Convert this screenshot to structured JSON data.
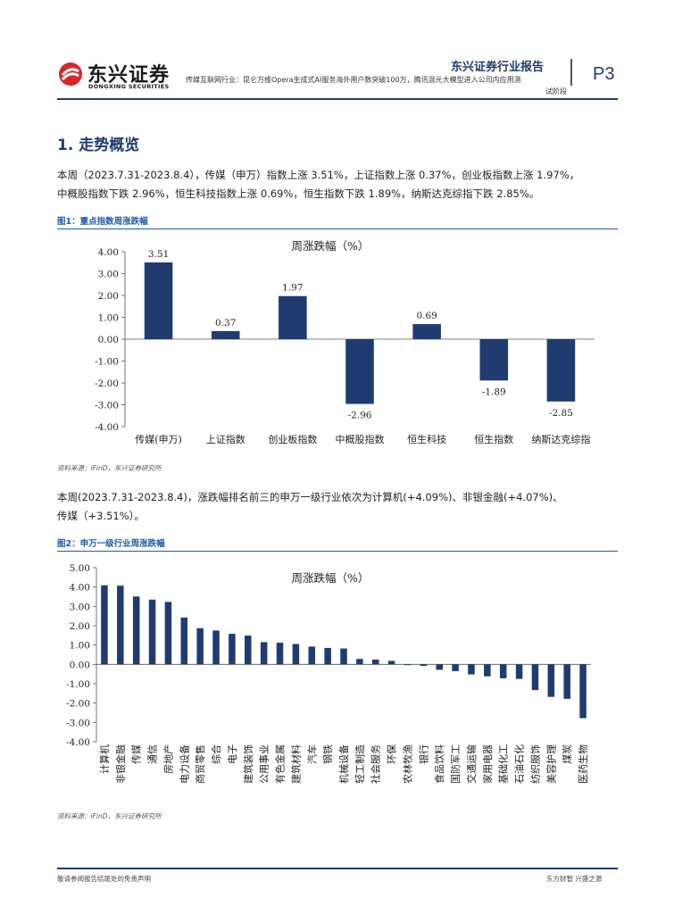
{
  "header": {
    "brand_cn": "东兴证券",
    "brand_en": "DONGXING SECURITIES",
    "report_title": "东兴证券行业报告",
    "page": "P3",
    "subtitle_line1": "传媒互联网行业：昆仑万维Opera生成式AI服务海外用户数突破100万，腾讯混元大模型进入公司内应用测",
    "subtitle_line2": "试阶段"
  },
  "section": {
    "title": "1. 走势概览"
  },
  "para1": {
    "line1": "本周（2023.7.31-2023.8.4），传媒（申万）指数上涨 3.51%，上证指数上涨 0.37%，创业板指数上涨 1.97%，",
    "line2": "中概股指数下跌 2.96%，恒生科技指数上涨 0.69%，恒生指数下跌 1.89%，纳斯达克综指下跌 2.85%。"
  },
  "fig1": {
    "caption": "图1：重点指数周涨跌幅",
    "source": "资料来源：iFinD，东兴证券研究所"
  },
  "para2": {
    "line1": "本周(2023.7.31-2023.8.4)，涨跌幅排名前三的申万一级行业依次为计算机(+4.09%)、非银金融(+4.07%)、",
    "line2": "传媒（+3.51%）。"
  },
  "fig2": {
    "caption": "图2：申万一级行业周涨跌幅",
    "source": "资料来源：iFinD，东兴证券研究所"
  },
  "footer": {
    "left": "敬请参阅报告结尾处的免责声明",
    "right": "东方财智 兴盛之源"
  },
  "colors": {
    "bar": "#1f3b70",
    "accent": "#1f5aa8",
    "logo_red": "#d7262b"
  },
  "chart_data": [
    {
      "type": "bar",
      "title": "周涨跌幅（%）",
      "categories": [
        "传媒(申万)",
        "上证指数",
        "创业板指数",
        "中概股指数",
        "恒生科技",
        "恒生指数",
        "纳斯达克综指"
      ],
      "values": [
        3.51,
        0.37,
        1.97,
        -2.96,
        0.69,
        -1.89,
        -2.85
      ],
      "data_labels": [
        "3.51",
        "0.37",
        "1.97",
        "-2.96",
        "0.69",
        "-1.89",
        "-2.85"
      ],
      "ylim": [
        -4,
        4
      ],
      "yticks": [
        "-4.00",
        "-3.00",
        "-2.00",
        "-1.00",
        "0.00",
        "1.00",
        "2.00",
        "3.00",
        "4.00"
      ],
      "grid": false,
      "legend": "none"
    },
    {
      "type": "bar",
      "title": "周涨跌幅（%）",
      "categories": [
        "计算机",
        "非银金融",
        "传媒",
        "通信",
        "房地产",
        "电力设备",
        "商贸零售",
        "综合",
        "电子",
        "建筑装饰",
        "公用事业",
        "有色金属",
        "建筑材料",
        "汽车",
        "钢铁",
        "机械设备",
        "轻工制造",
        "社会服务",
        "环保",
        "农林牧渔",
        "银行",
        "食品饮料",
        "国防军工",
        "交通运输",
        "家用电器",
        "基础化工",
        "石油石化",
        "纺织服饰",
        "美容护理",
        "煤炭",
        "医药生物"
      ],
      "values": [
        4.09,
        4.07,
        3.51,
        3.35,
        3.23,
        2.42,
        1.87,
        1.75,
        1.58,
        1.49,
        1.15,
        1.12,
        1.05,
        0.92,
        0.85,
        0.82,
        0.28,
        0.25,
        0.18,
        -0.04,
        -0.08,
        -0.28,
        -0.35,
        -0.52,
        -0.62,
        -0.72,
        -0.75,
        -1.33,
        -1.68,
        -1.78,
        -2.78
      ],
      "ylim": [
        -4,
        5
      ],
      "yticks": [
        "-4.00",
        "-3.00",
        "-2.00",
        "-1.00",
        "0.00",
        "1.00",
        "2.00",
        "3.00",
        "4.00",
        "5.00"
      ],
      "grid": false,
      "legend": "none"
    }
  ]
}
